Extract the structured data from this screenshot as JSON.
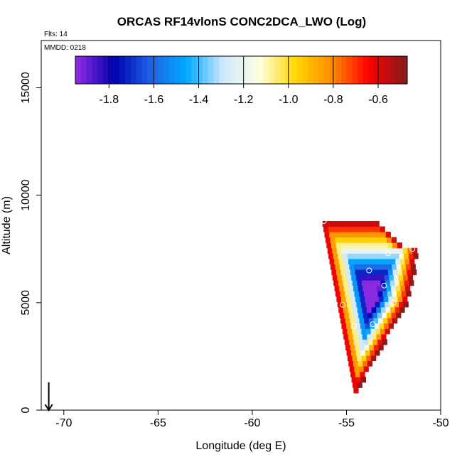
{
  "chart_data": {
    "type": "heatmap",
    "title": "ORCAS RF14vlonS CONC2DCA_LWO (Log)",
    "flights_label": "Flts: 14",
    "mmdd_label": "MMDD: 0218",
    "xlabel": "Longitude (deg E)",
    "ylabel": "Altitude (m)",
    "xlim": [
      -71.2,
      -50
    ],
    "ylim": [
      0,
      17200
    ],
    "xticks": [
      -70,
      -65,
      -60,
      -55,
      -50
    ],
    "yticks": [
      0,
      5000,
      10000,
      15000
    ],
    "xtick_labels": [
      "-70",
      "-65",
      "-60",
      "-55",
      "-50"
    ],
    "ytick_labels": [
      "0",
      "5000",
      "10000",
      "15000"
    ],
    "colorbar": {
      "range": [
        -1.95,
        -0.47
      ],
      "ticks": [
        -1.8,
        -1.6,
        -1.4,
        -1.2,
        -1.0,
        -0.8,
        -0.6
      ],
      "tick_labels": [
        "-1.8",
        "-1.6",
        "-1.4",
        "-1.2",
        "-1.0",
        "-0.8",
        "-0.6"
      ],
      "colors": [
        "#8a2be2",
        "#0000b0",
        "#1e64e6",
        "#00aaff",
        "#cfe8ff",
        "#ffffe0",
        "#ffd700",
        "#ff8c00",
        "#ff0000",
        "#8b1a1a"
      ]
    },
    "heat_region": {
      "lon_range": [
        -56.3,
        -51.3
      ],
      "alt_range": [
        800,
        8800
      ],
      "lon_step": 0.25,
      "alt_step": 250
    },
    "flight_points": [
      {
        "lon": -56.2,
        "alt": 8800
      },
      {
        "lon": -51.5,
        "alt": 7500
      },
      {
        "lon": -52.8,
        "alt": 7300
      },
      {
        "lon": -53.8,
        "alt": 6500
      },
      {
        "lon": -53.0,
        "alt": 5800
      },
      {
        "lon": -52.5,
        "alt": 5000
      },
      {
        "lon": -55.2,
        "alt": 4900
      },
      {
        "lon": -53.6,
        "alt": 4000
      },
      {
        "lon": -54.6,
        "alt": 3900
      }
    ],
    "arrow": {
      "lon": -70.8,
      "alt_from": 700,
      "alt_to": 0
    }
  }
}
